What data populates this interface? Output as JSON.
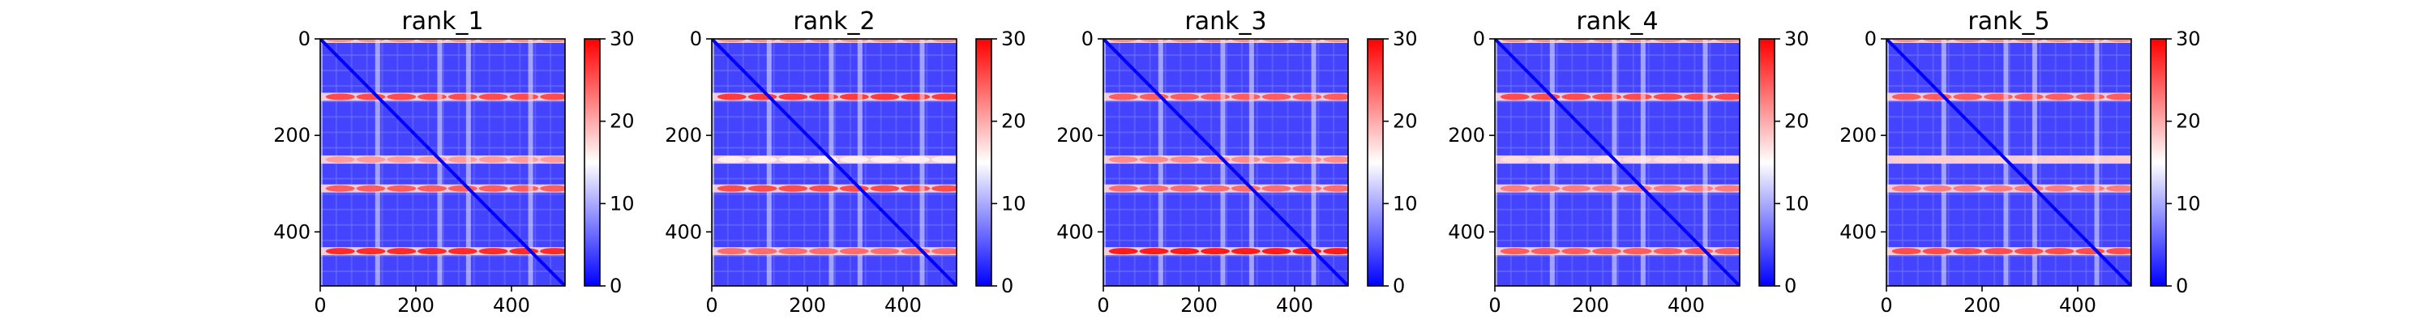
{
  "chart_data": {
    "type": "heatmap",
    "x_range": [
      0,
      512
    ],
    "y_range": [
      0,
      512
    ],
    "y_inverted": true,
    "xticks": [
      0,
      200,
      400
    ],
    "yticks": [
      0,
      200,
      400
    ],
    "colorbar": {
      "range": [
        0,
        30
      ],
      "ticks": [
        0,
        10,
        20,
        30
      ],
      "colormap": "bwr"
    },
    "colors": {
      "low": "#0000ff",
      "mid": "#ffffff",
      "high": "#ff0000"
    },
    "panels": [
      {
        "title": "rank_1",
        "hot_rows": [
          [
            0,
            22
          ],
          [
            120,
            26
          ],
          [
            250,
            21
          ],
          [
            310,
            25
          ],
          [
            440,
            28
          ]
        ]
      },
      {
        "title": "rank_2",
        "hot_rows": [
          [
            0,
            22
          ],
          [
            120,
            27
          ],
          [
            250,
            16
          ],
          [
            310,
            26
          ],
          [
            440,
            24
          ]
        ]
      },
      {
        "title": "rank_3",
        "hot_rows": [
          [
            0,
            22
          ],
          [
            120,
            25
          ],
          [
            250,
            22
          ],
          [
            310,
            24
          ],
          [
            440,
            29
          ]
        ]
      },
      {
        "title": "rank_4",
        "hot_rows": [
          [
            0,
            22
          ],
          [
            120,
            26
          ],
          [
            250,
            17
          ],
          [
            310,
            23
          ],
          [
            440,
            25
          ]
        ]
      },
      {
        "title": "rank_5",
        "hot_rows": [
          [
            0,
            22
          ],
          [
            120,
            25
          ],
          [
            250,
            18
          ],
          [
            310,
            23
          ],
          [
            440,
            26
          ]
        ]
      }
    ]
  }
}
